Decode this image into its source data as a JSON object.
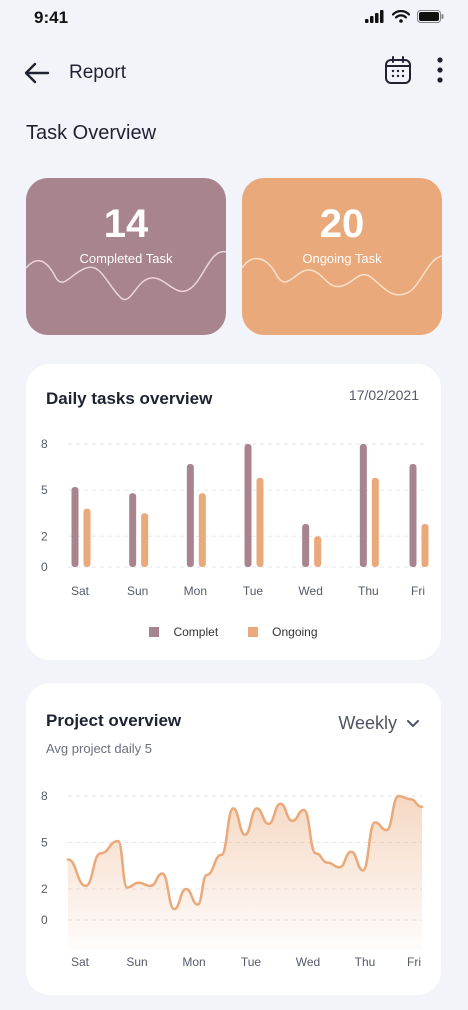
{
  "status": {
    "time": "9:41"
  },
  "header": {
    "title": "Report",
    "back_icon": "arrow-left-icon",
    "calendar_icon": "calendar-icon",
    "more_icon": "more-vertical-icon"
  },
  "section_title": "Task Overview",
  "cards": [
    {
      "value": "14",
      "label": "Completed Task",
      "color": "#a8848f"
    },
    {
      "value": "20",
      "label": "Ongoing Task",
      "color": "#eaa97a"
    }
  ],
  "daily": {
    "title": "Daily tasks overview",
    "date": "17/02/2021",
    "legend": [
      "Complet",
      "Ongoing"
    ]
  },
  "project": {
    "title": "Project overview",
    "subtitle": "Avg project daily 5",
    "period": "Weekly"
  },
  "colors": {
    "complet": "#a8848f",
    "ongoing": "#eaa97a",
    "background": "#f3f4fa"
  },
  "chart_data": [
    {
      "type": "bar",
      "title": "Daily tasks overview",
      "categories": [
        "Sat",
        "Sun",
        "Mon",
        "Tue",
        "Wed",
        "Thu",
        "Fri"
      ],
      "y_ticks": [
        "8",
        "5",
        "2",
        "0"
      ],
      "ylim": [
        0,
        8
      ],
      "grid": true,
      "legend_position": "bottom",
      "series": [
        {
          "name": "Complet",
          "color": "#a8848f",
          "values": [
            5.2,
            4.8,
            6.7,
            8,
            2.8,
            8,
            6.7
          ]
        },
        {
          "name": "Ongoing",
          "color": "#eaa97a",
          "values": [
            3.8,
            3.5,
            4.8,
            5.8,
            2,
            5.8,
            2.8
          ]
        }
      ]
    },
    {
      "type": "area",
      "title": "Project overview",
      "categories": [
        "Sat",
        "Sun",
        "Mon",
        "Tue",
        "Wed",
        "Thu",
        "Fri"
      ],
      "y_ticks": [
        "8",
        "5",
        "2",
        "0"
      ],
      "ylim": [
        0,
        8
      ],
      "grid": true,
      "x": [
        0,
        0.3,
        0.55,
        0.85,
        1.0,
        1.2,
        1.4,
        1.6,
        1.8,
        2.0,
        2.2,
        2.35,
        2.6,
        2.8,
        3.0,
        3.2,
        3.4,
        3.6,
        3.8,
        4.0,
        4.2,
        4.4,
        4.6,
        4.8,
        5.0,
        5.2,
        5.4,
        5.6,
        5.8,
        6.0
      ],
      "y": [
        3.9,
        2.2,
        4.3,
        5.1,
        2.1,
        2.4,
        2.2,
        3.0,
        0.7,
        2.0,
        1.0,
        2.9,
        4.2,
        7.2,
        5.5,
        7.2,
        6.2,
        7.5,
        6.4,
        7.1,
        4.3,
        3.7,
        3.4,
        4.4,
        3.2,
        6.3,
        5.8,
        8.0,
        7.8,
        7.3
      ],
      "color": "#eaa97a"
    }
  ]
}
